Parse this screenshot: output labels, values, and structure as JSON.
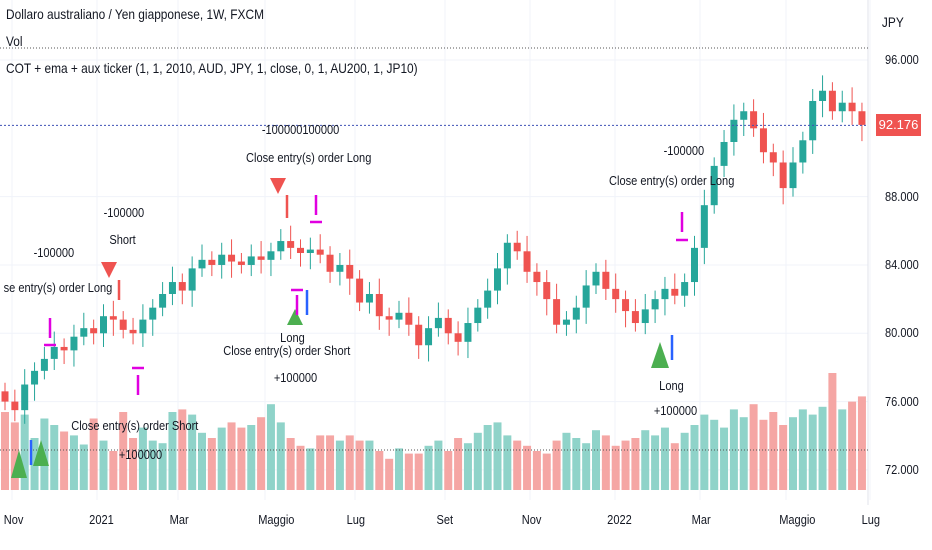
{
  "header": {
    "symbol_title": "Dollaro australiano / Yen giapponese, 1W, FXCM",
    "volume_label": "Vol",
    "strategy_label": "COT + ema + aux ticker (1, 1, 2010, AUD, JPY, 1, close, 0, 1, AU200, 1, JP10)"
  },
  "price_axis": {
    "currency": "JPY",
    "last_price": "92.176"
  },
  "annotations": [
    {
      "text": "-100000100000"
    },
    {
      "text": "Close entry(s) order Long"
    },
    {
      "text": "-100000"
    },
    {
      "text": "Short"
    },
    {
      "text": "-100000"
    },
    {
      "text": "se entry(s) order Long"
    },
    {
      "text": "Close entry(s) order Short"
    },
    {
      "text": "Long"
    },
    {
      "text": "+100000"
    },
    {
      "text": "-100000"
    },
    {
      "text": "Close entry(s) order Long"
    },
    {
      "text": "Long"
    },
    {
      "text": "+100000"
    },
    {
      "text": "Close entry(s) order Short"
    },
    {
      "text": "+100000"
    }
  ],
  "colors": {
    "up": "#26a69a",
    "down": "#ef5350",
    "up_vol": "#8fd3c9",
    "down_vol": "#f5a6a4",
    "last_price_line": "#3f51b5",
    "marker_magenta": "#e000e0",
    "marker_blue": "#2962ff",
    "marker_green": "#4caf50"
  },
  "chart_data": {
    "type": "candlestick",
    "title": "Dollaro australiano / Yen giapponese, 1W, FXCM",
    "ylabel": "JPY",
    "ylim": [
      70.8,
      97.5
    ],
    "y_ticks": [
      "96.000",
      "88.000",
      "84.000",
      "80.000",
      "76.000",
      "72.000"
    ],
    "x_ticks": [
      "Nov",
      "2021",
      "Mar",
      "Maggio",
      "Lug",
      "Set",
      "Nov",
      "2022",
      "Mar",
      "Maggio",
      "Lug"
    ],
    "closes": [
      76.0,
      75.5,
      77.0,
      77.8,
      78.5,
      79.2,
      79.0,
      79.8,
      80.3,
      80.0,
      81.0,
      80.8,
      80.2,
      80.0,
      80.8,
      81.5,
      82.3,
      83.0,
      82.5,
      83.8,
      84.3,
      84.0,
      84.6,
      84.2,
      84.0,
      84.5,
      84.3,
      84.8,
      85.4,
      85.0,
      84.7,
      84.9,
      84.6,
      83.6,
      84.0,
      83.2,
      81.8,
      82.3,
      81.0,
      80.8,
      81.2,
      80.5,
      79.3,
      80.3,
      80.9,
      80.0,
      79.5,
      80.6,
      81.5,
      82.5,
      83.8,
      85.3,
      84.8,
      83.6,
      83.0,
      82.0,
      80.5,
      80.8,
      81.5,
      82.8,
      83.6,
      82.6,
      82.0,
      81.3,
      80.6,
      81.4,
      82.0,
      82.6,
      82.2,
      83.0,
      85.0,
      87.5,
      89.8,
      91.2,
      92.5,
      93.0,
      92.0,
      90.6,
      90.0,
      88.5,
      90.0,
      91.3,
      93.6,
      94.2,
      93.0,
      93.5,
      93.0,
      92.2
    ],
    "volumes": [
      60,
      52,
      58,
      40,
      55,
      50,
      45,
      42,
      35,
      55,
      38,
      30,
      60,
      40,
      48,
      38,
      36,
      60,
      62,
      58,
      44,
      40,
      48,
      52,
      48,
      50,
      56,
      66,
      52,
      40,
      34,
      32,
      42,
      42,
      38,
      42,
      38,
      38,
      30,
      24,
      32,
      28,
      28,
      34,
      38,
      30,
      40,
      36,
      44,
      50,
      52,
      42,
      38,
      34,
      30,
      28,
      38,
      44,
      40,
      36,
      46,
      42,
      34,
      38,
      40,
      46,
      42,
      48,
      36,
      44,
      50,
      58,
      54,
      48,
      62,
      56,
      66,
      54,
      60,
      50,
      56,
      62,
      58,
      64,
      90,
      62,
      68,
      72
    ]
  }
}
